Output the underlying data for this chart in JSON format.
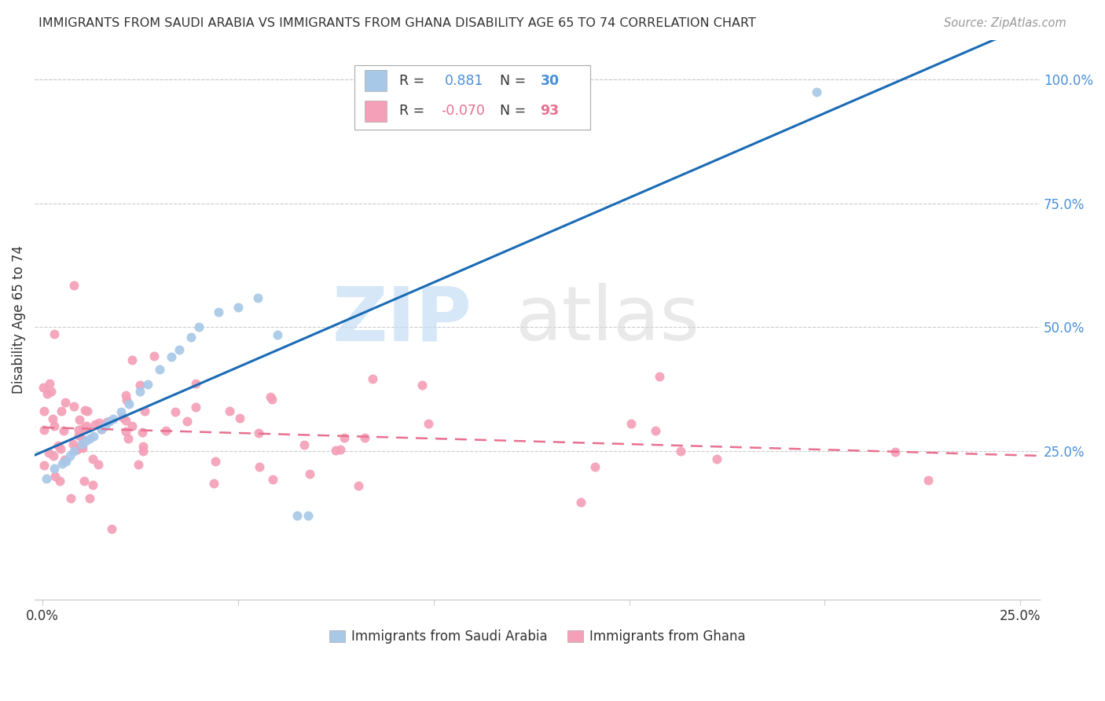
{
  "title": "IMMIGRANTS FROM SAUDI ARABIA VS IMMIGRANTS FROM GHANA DISABILITY AGE 65 TO 74 CORRELATION CHART",
  "source": "Source: ZipAtlas.com",
  "ylabel": "Disability Age 65 to 74",
  "xlim": [
    -0.002,
    0.255
  ],
  "ylim": [
    -0.05,
    1.08
  ],
  "xtick_positions": [
    0.0,
    0.05,
    0.1,
    0.15,
    0.2,
    0.25
  ],
  "xticklabels": [
    "0.0%",
    "",
    "",
    "",
    "",
    "25.0%"
  ],
  "ytick_positions": [
    0.0,
    0.25,
    0.5,
    0.75,
    1.0
  ],
  "yticklabels_right": [
    "",
    "25.0%",
    "50.0%",
    "75.0%",
    "100.0%"
  ],
  "saudi_R": 0.881,
  "saudi_N": 30,
  "ghana_R": -0.07,
  "ghana_N": 93,
  "saudi_dot_color": "#a8c8e8",
  "ghana_dot_color": "#f4a0b8",
  "saudi_line_color": "#1a6bb5",
  "ghana_line_color": "#e87090",
  "watermark_zip_color": "#c5ddf5",
  "watermark_atlas_color": "#d8d8d8",
  "legend_label_saudi": "Immigrants from Saudi Arabia",
  "legend_label_ghana": "Immigrants from Ghana",
  "grid_color": "#cccccc",
  "text_color": "#333333",
  "source_color": "#999999",
  "right_axis_color": "#4a90d9",
  "legend_r_color_saudi": "#4a90d9",
  "legend_r_color_ghana": "#e87090",
  "legend_n_color": "#333333",
  "legend_n_val_color_saudi": "#4a90d9",
  "legend_n_val_color_ghana": "#e87090"
}
